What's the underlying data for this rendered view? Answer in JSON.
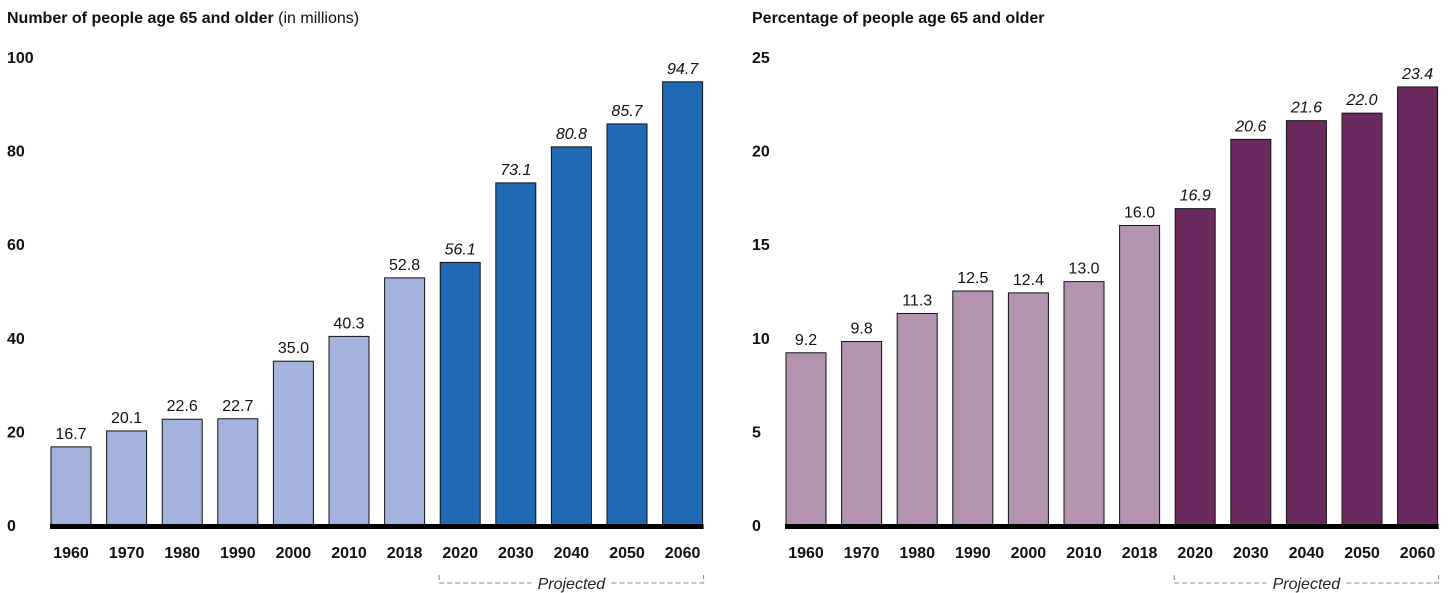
{
  "chart_data": [
    {
      "type": "bar",
      "title": "Number of people age 65 and older",
      "subtitle": "(in millions)",
      "categories": [
        "1960",
        "1970",
        "1980",
        "1990",
        "2000",
        "2010",
        "2018",
        "2020",
        "2030",
        "2040",
        "2050",
        "2060"
      ],
      "values": [
        16.7,
        20.1,
        22.6,
        22.7,
        35.0,
        40.3,
        52.8,
        56.1,
        73.1,
        80.8,
        85.7,
        94.7
      ],
      "value_labels": [
        "16.7",
        "20.1",
        "22.6",
        "22.7",
        "35.0",
        "40.3",
        "52.8",
        "56.1",
        "73.1",
        "80.8",
        "85.7",
        "94.7"
      ],
      "projected": [
        false,
        false,
        false,
        false,
        false,
        false,
        false,
        true,
        true,
        true,
        true,
        true
      ],
      "ylim": [
        0,
        100
      ],
      "yticks": [
        "0",
        "20",
        "40",
        "60",
        "80",
        "100"
      ],
      "ytick_values": [
        0,
        20,
        40,
        60,
        80,
        100
      ],
      "projected_label": "Projected",
      "colors": {
        "actual": "#a3b3de",
        "projected": "#1f69b5"
      },
      "grid": false
    },
    {
      "type": "bar",
      "title": "Percentage of people age 65 and older",
      "subtitle": "",
      "categories": [
        "1960",
        "1970",
        "1980",
        "1990",
        "2000",
        "2010",
        "2018",
        "2020",
        "2030",
        "2040",
        "2050",
        "2060"
      ],
      "values": [
        9.2,
        9.8,
        11.3,
        12.5,
        12.4,
        13.0,
        16.0,
        16.9,
        20.6,
        21.6,
        22.0,
        23.4
      ],
      "value_labels": [
        "9.2",
        "9.8",
        "11.3",
        "12.5",
        "12.4",
        "13.0",
        "16.0",
        "16.9",
        "20.6",
        "21.6",
        "22.0",
        "23.4"
      ],
      "projected": [
        false,
        false,
        false,
        false,
        false,
        false,
        false,
        true,
        true,
        true,
        true,
        true
      ],
      "ylim": [
        0,
        25
      ],
      "yticks": [
        "0",
        "5",
        "10",
        "15",
        "20",
        "25"
      ],
      "ytick_values": [
        0,
        5,
        10,
        15,
        20,
        25
      ],
      "projected_label": "Projected",
      "colors": {
        "actual": "#b394b0",
        "projected": "#6b2a5e"
      },
      "grid": false
    }
  ]
}
